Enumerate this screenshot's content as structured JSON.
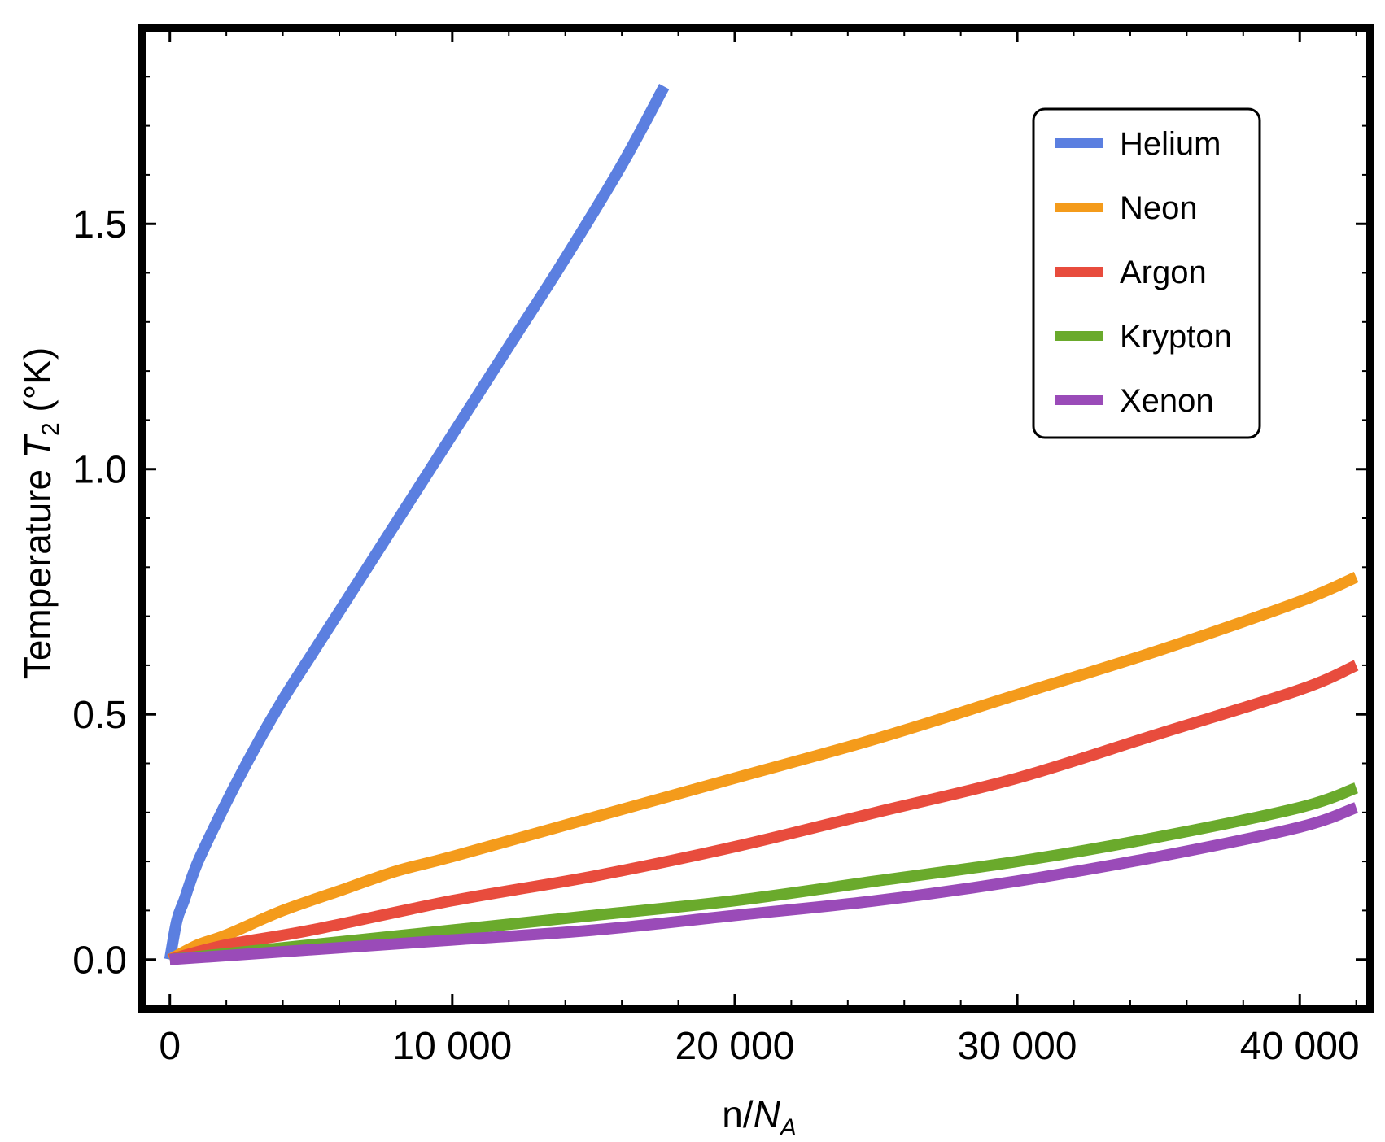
{
  "chart_data": {
    "type": "line",
    "xlabel": {
      "prefix": "n/",
      "main": "N",
      "sub": "A"
    },
    "ylabel": {
      "prefix": "Temperature ",
      "main": "T",
      "sub": "2",
      "suffix": " (°K)"
    },
    "xlim": [
      -1000,
      42500
    ],
    "ylim": [
      -0.1,
      1.9
    ],
    "x_ticks": [
      {
        "value": 0,
        "label": "0"
      },
      {
        "value": 10000,
        "label": "10 000"
      },
      {
        "value": 20000,
        "label": "20 000"
      },
      {
        "value": 30000,
        "label": "30 000"
      },
      {
        "value": 40000,
        "label": "40 000"
      }
    ],
    "y_ticks": [
      {
        "value": 0.0,
        "label": "0.0"
      },
      {
        "value": 0.5,
        "label": "0.5"
      },
      {
        "value": 1.0,
        "label": "1.0"
      },
      {
        "value": 1.5,
        "label": "1.5"
      }
    ],
    "grid": false,
    "legend_position": "top-right",
    "series": [
      {
        "name": "Helium",
        "color": "#5b7fe0",
        "x": [
          0,
          250,
          500,
          1000,
          2000,
          3000,
          4000,
          5000,
          6000,
          8000,
          10000,
          12000,
          14000,
          16000,
          17500
        ],
        "y": [
          0.0,
          0.08,
          0.12,
          0.2,
          0.32,
          0.43,
          0.53,
          0.62,
          0.71,
          0.89,
          1.07,
          1.25,
          1.43,
          1.62,
          1.78
        ]
      },
      {
        "name": "Neon",
        "color": "#f49b1b",
        "x": [
          0,
          1000,
          2000,
          4000,
          6000,
          8000,
          10000,
          15000,
          20000,
          25000,
          30000,
          35000,
          40000,
          42000
        ],
        "y": [
          0.0,
          0.03,
          0.05,
          0.1,
          0.14,
          0.18,
          0.21,
          0.29,
          0.37,
          0.45,
          0.54,
          0.63,
          0.73,
          0.78
        ]
      },
      {
        "name": "Argon",
        "color": "#e84c3d",
        "x": [
          0,
          2000,
          5000,
          10000,
          15000,
          20000,
          25000,
          30000,
          35000,
          40000,
          42000
        ],
        "y": [
          0.0,
          0.03,
          0.06,
          0.12,
          0.17,
          0.23,
          0.3,
          0.37,
          0.46,
          0.55,
          0.6
        ]
      },
      {
        "name": "Krypton",
        "color": "#6aaa2c",
        "x": [
          0,
          5000,
          10000,
          15000,
          20000,
          25000,
          30000,
          35000,
          40000,
          42000
        ],
        "y": [
          0.0,
          0.03,
          0.06,
          0.09,
          0.12,
          0.16,
          0.2,
          0.25,
          0.31,
          0.35
        ]
      },
      {
        "name": "Xenon",
        "color": "#9a4bb8",
        "x": [
          0,
          5000,
          10000,
          15000,
          20000,
          25000,
          30000,
          35000,
          40000,
          42000
        ],
        "y": [
          0.0,
          0.02,
          0.04,
          0.06,
          0.09,
          0.12,
          0.16,
          0.21,
          0.27,
          0.31
        ]
      }
    ]
  }
}
